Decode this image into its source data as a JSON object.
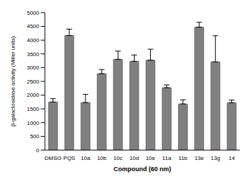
{
  "chart_data": {
    "type": "bar",
    "x_label": "Compound (60 nm)",
    "y_label": "β-galactosidase activity (Miller units)",
    "categories": [
      "DMSO",
      "PQS",
      "10a",
      "10b",
      "10c",
      "10d",
      "10e",
      "11a",
      "11b",
      "13e",
      "13g",
      "14"
    ],
    "values": [
      1750,
      4170,
      1730,
      2780,
      3300,
      3230,
      3270,
      2270,
      1680,
      4470,
      3210,
      1720
    ],
    "error": [
      120,
      230,
      300,
      150,
      300,
      230,
      400,
      100,
      150,
      180,
      950,
      100
    ],
    "color": "#808080",
    "ylim": [
      0,
      5000
    ],
    "yticks": [
      0,
      500,
      1000,
      1500,
      2000,
      2500,
      3000,
      3500,
      4000,
      4500,
      5000
    ],
    "grid": false
  }
}
